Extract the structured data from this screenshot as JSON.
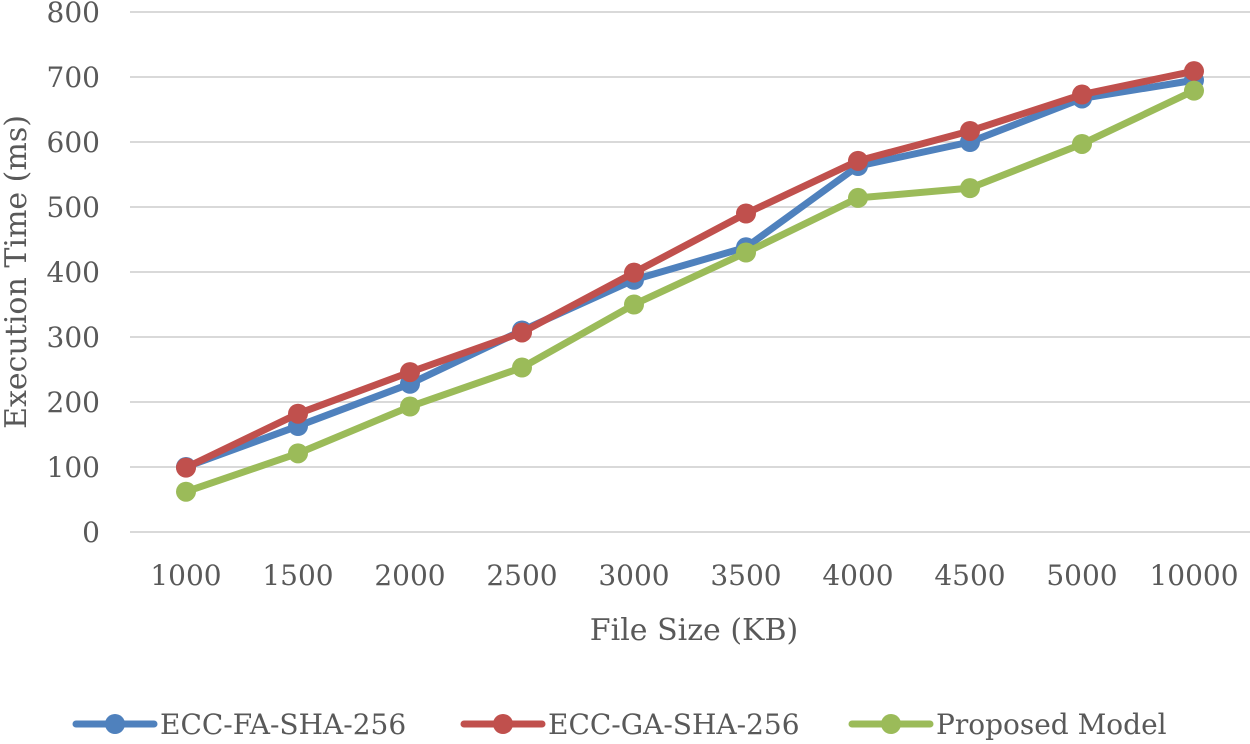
{
  "chart_data": {
    "type": "line",
    "title": "",
    "xlabel": "File Size (KB)",
    "ylabel": "Execution Time (ms)",
    "categories": [
      "1000",
      "1500",
      "2000",
      "2500",
      "3000",
      "3500",
      "4000",
      "4500",
      "5000",
      "10000"
    ],
    "ylim": [
      0,
      800
    ],
    "yticks": [
      "0",
      "100",
      "200",
      "300",
      "400",
      "500",
      "600",
      "700",
      "800"
    ],
    "grid": true,
    "legend_position": "bottom",
    "series": [
      {
        "name": "ECC-FA-SHA-256",
        "color": "#4F81BD",
        "values": [
          100,
          163,
          228,
          310,
          388,
          438,
          563,
          600,
          667,
          695
        ]
      },
      {
        "name": "ECC-GA-SHA-256",
        "color": "#C0504D",
        "values": [
          99,
          182,
          246,
          307,
          399,
          490,
          571,
          617,
          673,
          709
        ]
      },
      {
        "name": "Proposed Model",
        "color": "#9BBB59",
        "values": [
          62,
          121,
          193,
          253,
          350,
          430,
          514,
          529,
          597,
          679
        ]
      }
    ]
  }
}
